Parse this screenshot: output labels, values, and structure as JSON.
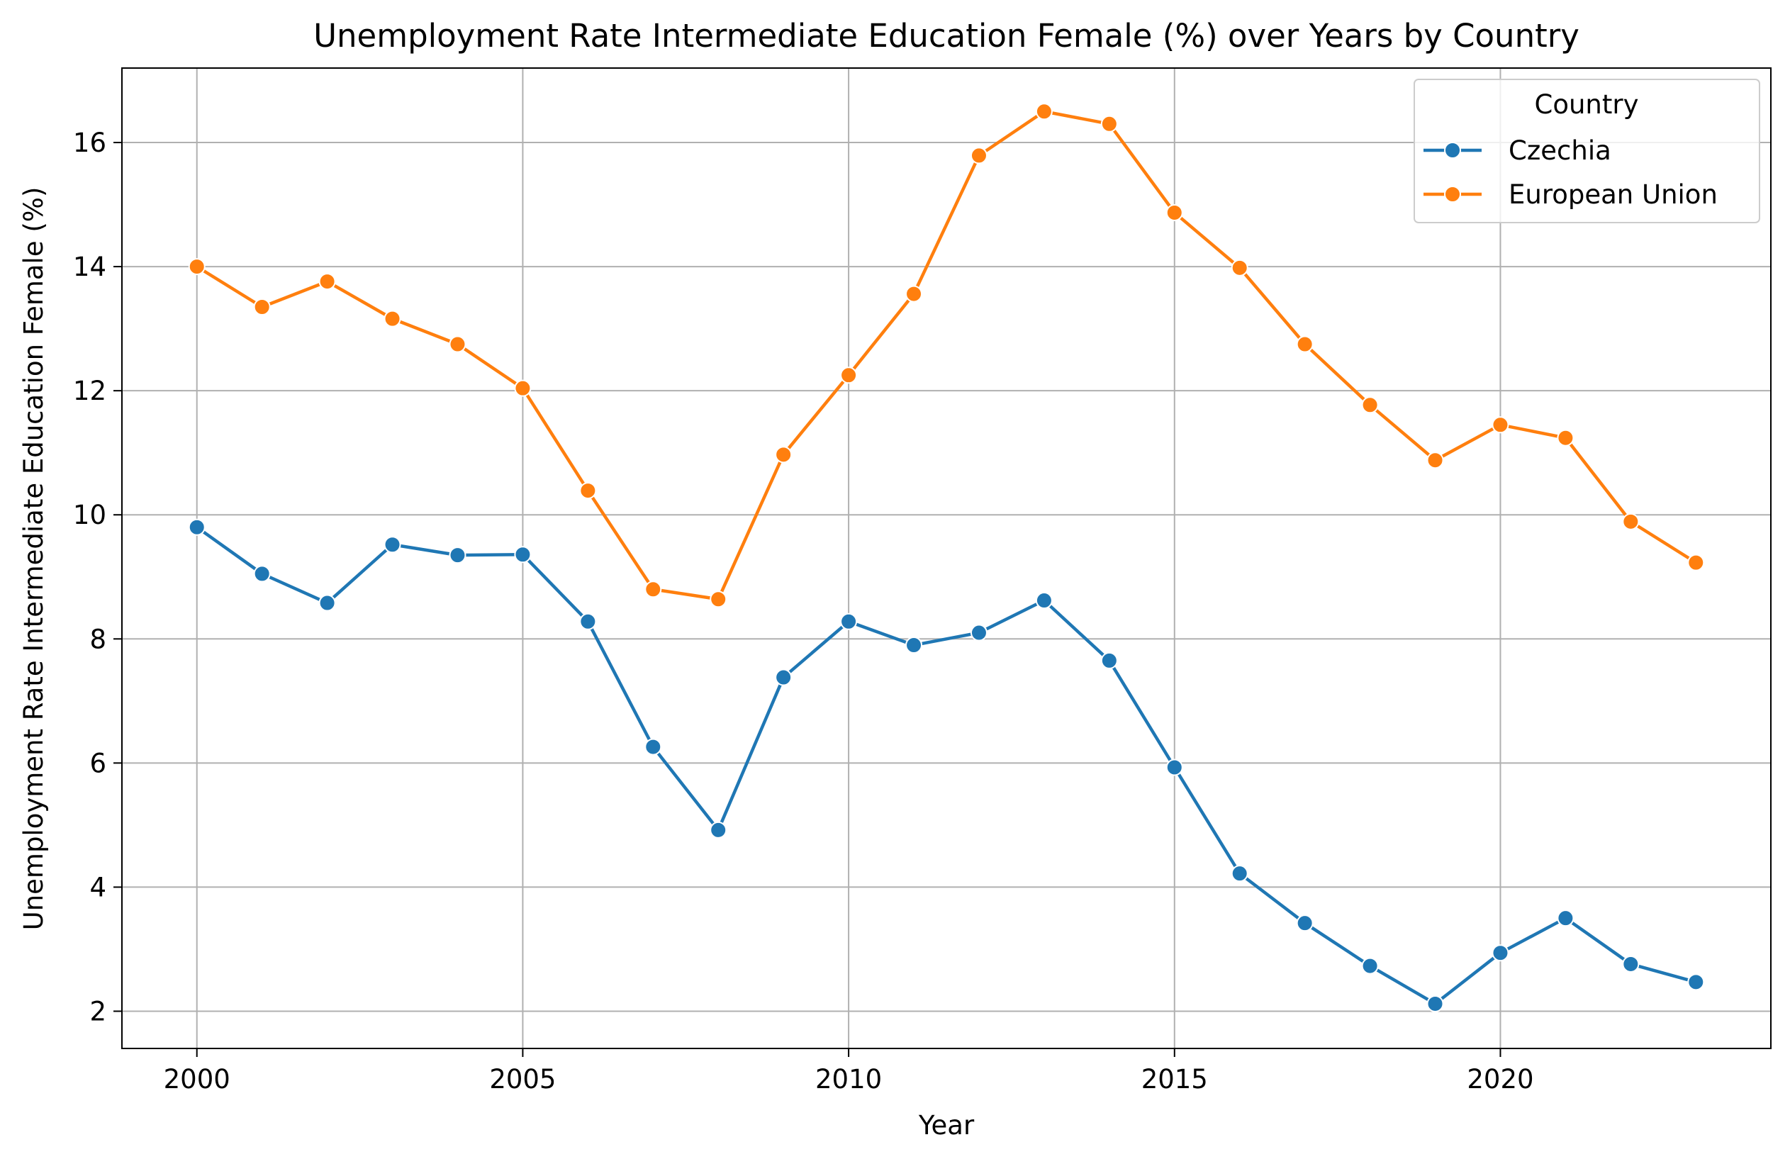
{
  "chart_data": {
    "type": "line",
    "title": "Unemployment Rate Intermediate Education Female (%) over Years by Country",
    "xlabel": "Year",
    "ylabel": "Unemployment Rate Intermediate Education Female (%)",
    "xlim": [
      1998.85,
      2024.15
    ],
    "ylim": [
      1.4,
      17.2
    ],
    "xticks": [
      2000,
      2005,
      2010,
      2015,
      2020
    ],
    "yticks": [
      2,
      4,
      6,
      8,
      10,
      12,
      14,
      16
    ],
    "grid": true,
    "legend": {
      "title": "Country",
      "position": "top-right"
    },
    "x": [
      2000,
      2001,
      2002,
      2003,
      2004,
      2005,
      2006,
      2007,
      2008,
      2009,
      2010,
      2011,
      2012,
      2013,
      2014,
      2015,
      2016,
      2017,
      2018,
      2019,
      2020,
      2021,
      2022,
      2023
    ],
    "series": [
      {
        "name": "Czechia",
        "color": "#1f77b4",
        "values": [
          9.8,
          9.05,
          8.58,
          9.52,
          9.35,
          9.36,
          8.28,
          6.26,
          4.92,
          7.38,
          8.28,
          7.9,
          8.1,
          8.62,
          7.65,
          5.93,
          4.22,
          3.42,
          2.73,
          2.12,
          2.94,
          3.5,
          2.76,
          2.47
        ]
      },
      {
        "name": "European Union",
        "color": "#ff7f0e",
        "values": [
          14.0,
          13.35,
          13.76,
          13.16,
          12.75,
          12.04,
          10.39,
          8.8,
          8.64,
          10.97,
          12.25,
          13.56,
          15.79,
          16.5,
          16.3,
          14.87,
          13.98,
          12.75,
          11.77,
          10.88,
          11.45,
          11.24,
          9.89,
          9.23
        ]
      }
    ]
  }
}
